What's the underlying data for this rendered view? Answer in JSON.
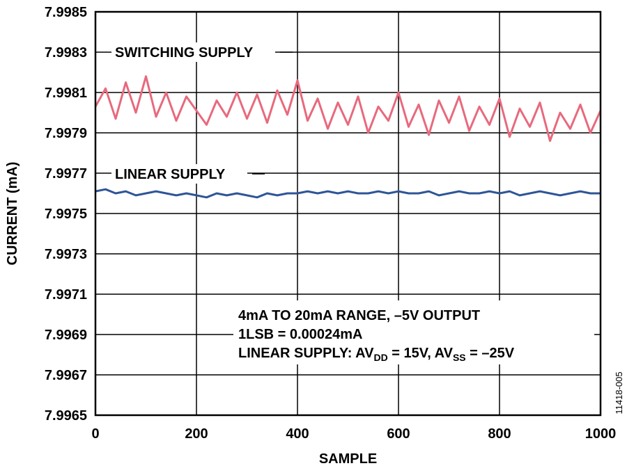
{
  "chart_data": {
    "type": "line",
    "xlabel": "SAMPLE",
    "ylabel": "CURRENT (mA)",
    "x": [
      0,
      20,
      40,
      60,
      80,
      100,
      120,
      140,
      160,
      180,
      200,
      220,
      240,
      260,
      280,
      300,
      320,
      340,
      360,
      380,
      400,
      420,
      440,
      460,
      480,
      500,
      520,
      540,
      560,
      580,
      600,
      620,
      640,
      660,
      680,
      700,
      720,
      740,
      760,
      780,
      800,
      820,
      840,
      860,
      880,
      900,
      920,
      940,
      960,
      980,
      1000
    ],
    "series": [
      {
        "name": "SWITCHING SUPPLY",
        "color": "#e8697d",
        "values": [
          7.99803,
          7.99812,
          7.99797,
          7.99815,
          7.998,
          7.99818,
          7.99798,
          7.9981,
          7.99796,
          7.99808,
          7.99801,
          7.99794,
          7.99806,
          7.99798,
          7.9981,
          7.99797,
          7.99809,
          7.99795,
          7.99811,
          7.99799,
          7.99816,
          7.99796,
          7.99807,
          7.99792,
          7.99805,
          7.99794,
          7.99808,
          7.9979,
          7.99803,
          7.99796,
          7.9981,
          7.99793,
          7.99804,
          7.99789,
          7.99806,
          7.99795,
          7.99808,
          7.99791,
          7.99803,
          7.99794,
          7.99807,
          7.99788,
          7.99802,
          7.99793,
          7.99805,
          7.99786,
          7.998,
          7.99792,
          7.99804,
          7.9979,
          7.99801
        ]
      },
      {
        "name": "LINEAR SUPPLY",
        "color": "#2e5597",
        "values": [
          7.99761,
          7.99762,
          7.9976,
          7.99761,
          7.99759,
          7.9976,
          7.99761,
          7.9976,
          7.99759,
          7.9976,
          7.99759,
          7.99758,
          7.9976,
          7.99759,
          7.9976,
          7.99759,
          7.99758,
          7.9976,
          7.99759,
          7.9976,
          7.9976,
          7.99761,
          7.9976,
          7.99761,
          7.9976,
          7.99761,
          7.9976,
          7.9976,
          7.99761,
          7.9976,
          7.99761,
          7.9976,
          7.9976,
          7.99761,
          7.99759,
          7.9976,
          7.99761,
          7.9976,
          7.9976,
          7.99761,
          7.9976,
          7.99761,
          7.99759,
          7.9976,
          7.99761,
          7.9976,
          7.99759,
          7.9976,
          7.99761,
          7.9976,
          7.9976
        ]
      }
    ],
    "xlim": [
      0,
      1000
    ],
    "xticks": [
      0,
      200,
      400,
      600,
      800,
      1000
    ],
    "ylim": [
      7.9965,
      7.9985
    ],
    "yticks": [
      7.9965,
      7.9967,
      7.9969,
      7.9971,
      7.9973,
      7.9975,
      7.9977,
      7.9979,
      7.9981,
      7.9983,
      7.9985
    ],
    "grid": true,
    "annotation_lines": [
      "4mA TO 20mA RANGE, –5V OUTPUT",
      "1LSB = 0.00024mA"
    ],
    "annotation_parts": [
      "LINEAR SUPPLY: AV",
      "DD",
      " = 15V, AV",
      "SS",
      " = –25V"
    ],
    "figure_id": "11418-005"
  }
}
